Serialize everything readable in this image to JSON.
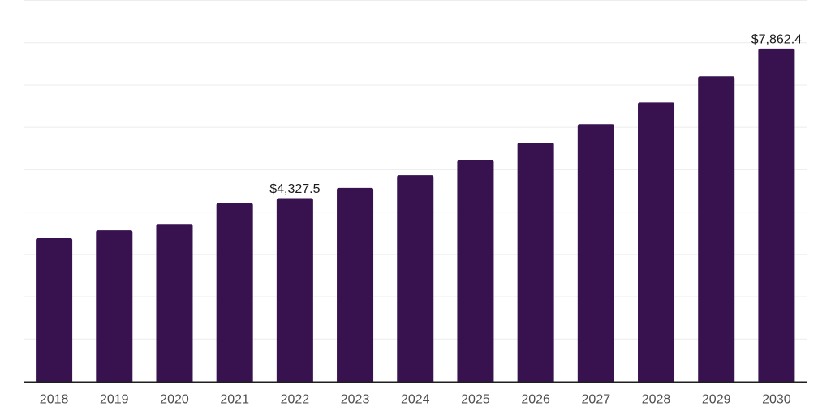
{
  "chart_data": {
    "type": "bar",
    "title": "",
    "xlabel": "",
    "ylabel": "",
    "categories": [
      "2018",
      "2019",
      "2020",
      "2021",
      "2022",
      "2023",
      "2024",
      "2025",
      "2026",
      "2027",
      "2028",
      "2029",
      "2030"
    ],
    "values": [
      3380,
      3570,
      3720,
      4210,
      4327.5,
      4570,
      4870,
      5225,
      5640,
      6075,
      6590,
      7205,
      7862.4
    ],
    "data_labels": [
      {
        "index": 4,
        "category": "2022",
        "text": "$4,327.5"
      },
      {
        "index": 12,
        "category": "2030",
        "text": "$7,862.4"
      }
    ],
    "ylim": [
      0,
      9000
    ],
    "gridline_interval": 1000,
    "grid": "horizontal",
    "legend": "none",
    "y_axis_labels": "none",
    "colors": {
      "bar": "#38114F",
      "axis_line": "#1F1F1F",
      "gridline": "#ECECEC",
      "tick_label": "#4F4F4F",
      "data_label": "#1A1A1A",
      "background": "#FFFFFF"
    }
  }
}
